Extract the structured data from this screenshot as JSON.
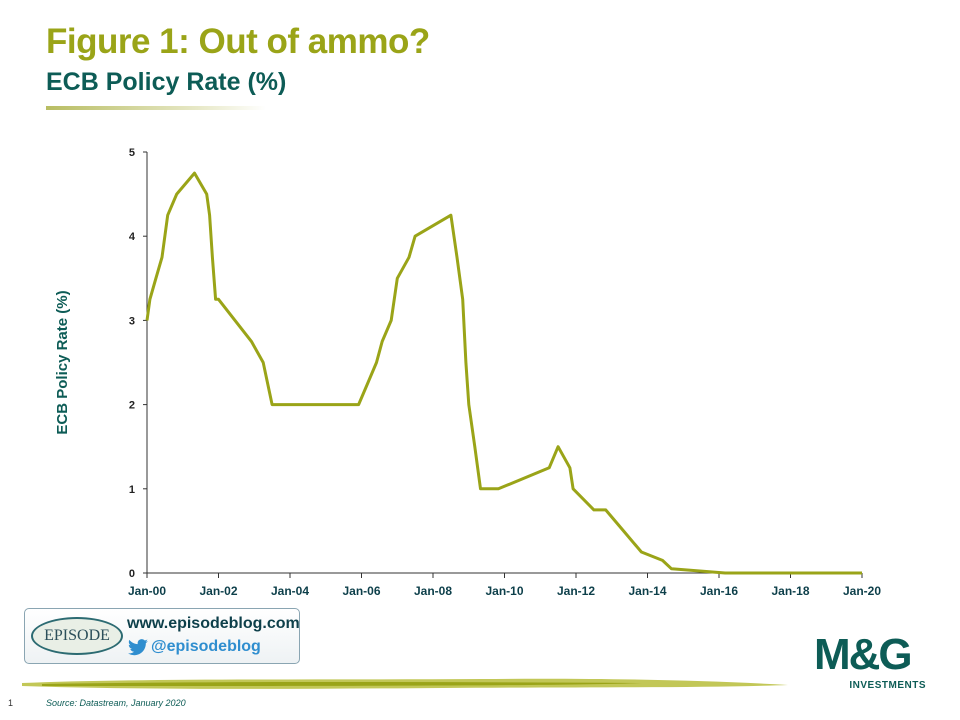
{
  "header": {
    "title": "Figure 1: Out of ammo?",
    "subtitle": "ECB Policy Rate (%)"
  },
  "banner": {
    "logo_text": "EPISODE",
    "url": "www.episodeblog.com",
    "handle": "@episodeblog"
  },
  "brand": {
    "logo": "M&G",
    "logo_sub": "INVESTMENTS"
  },
  "footer": {
    "page_number": "1",
    "source": "Source: Datastream, January 2020"
  },
  "colors": {
    "line": "#9aa418",
    "title": "#9aa418",
    "subtitle": "#0d5c56",
    "axis_label": "#0d5c56"
  },
  "chart_data": {
    "type": "line",
    "title": "",
    "xlabel": "",
    "ylabel": "ECB Policy Rate (%)",
    "xlim": [
      2000.0,
      2020.0
    ],
    "ylim": [
      0,
      5
    ],
    "y_ticks": [
      0,
      1,
      2,
      3,
      4,
      5
    ],
    "x_tick_labels": [
      "Jan-00",
      "Jan-02",
      "Jan-04",
      "Jan-06",
      "Jan-08",
      "Jan-10",
      "Jan-12",
      "Jan-14",
      "Jan-16",
      "Jan-18",
      "Jan-20"
    ],
    "x_tick_values": [
      2000,
      2002,
      2004,
      2006,
      2008,
      2010,
      2012,
      2014,
      2016,
      2018,
      2020
    ],
    "grid": false,
    "series": [
      {
        "color": "#9aa418",
        "x": [
          2000.0,
          2000.08,
          2000.25,
          2000.42,
          2000.58,
          2000.83,
          2001.33,
          2001.67,
          2001.75,
          2001.83,
          2001.92,
          2002.0,
          2002.92,
          2003.25,
          2003.5,
          2005.92,
          2006.17,
          2006.42,
          2006.58,
          2006.83,
          2007.0,
          2007.33,
          2007.5,
          2008.5,
          2008.67,
          2008.83,
          2008.92,
          2009.0,
          2009.17,
          2009.33,
          2009.83,
          2011.25,
          2011.5,
          2011.83,
          2011.92,
          2012.5,
          2012.83,
          2013.33,
          2013.83,
          2014.42,
          2014.67,
          2016.17,
          2020.0
        ],
        "y": [
          3.0,
          3.25,
          3.5,
          3.75,
          4.25,
          4.5,
          4.75,
          4.5,
          4.25,
          3.75,
          3.25,
          3.25,
          2.75,
          2.5,
          2.0,
          2.0,
          2.25,
          2.5,
          2.75,
          3.0,
          3.5,
          3.75,
          4.0,
          4.25,
          3.75,
          3.25,
          2.5,
          2.0,
          1.5,
          1.0,
          1.0,
          1.25,
          1.5,
          1.25,
          1.0,
          0.75,
          0.75,
          0.5,
          0.25,
          0.15,
          0.05,
          0.0,
          0.0
        ]
      }
    ]
  }
}
